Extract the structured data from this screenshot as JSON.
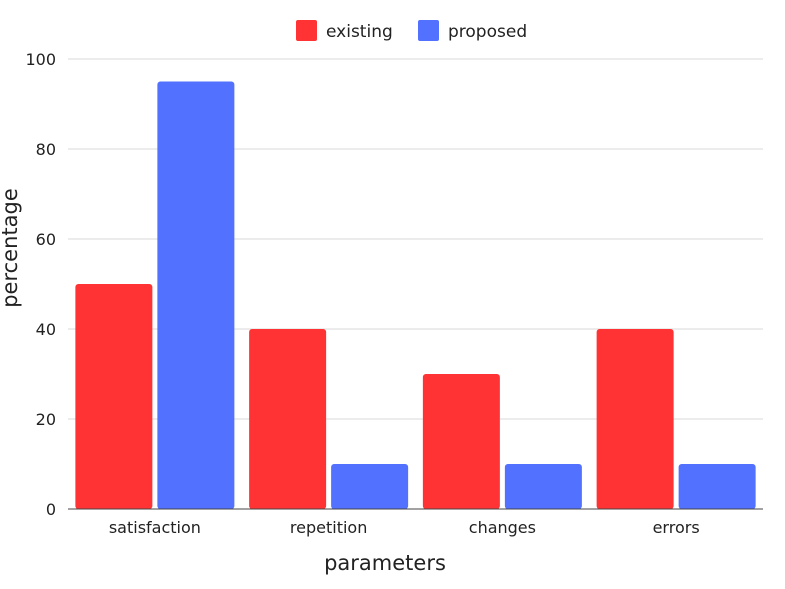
{
  "chart_data": {
    "type": "bar",
    "categories": [
      "satisfaction",
      "repetition",
      "changes",
      "errors"
    ],
    "series": [
      {
        "name": "existing",
        "values": [
          50,
          40,
          30,
          40
        ],
        "color": "#ff3333"
      },
      {
        "name": "proposed",
        "values": [
          95,
          10,
          10,
          10
        ],
        "color": "#5271ff"
      }
    ],
    "xlabel": "parameters",
    "ylabel": "percentage",
    "ylim": [
      0,
      100
    ],
    "yticks": [
      0,
      20,
      40,
      60,
      80,
      100
    ],
    "grid": true,
    "legend_position": "top-center"
  }
}
